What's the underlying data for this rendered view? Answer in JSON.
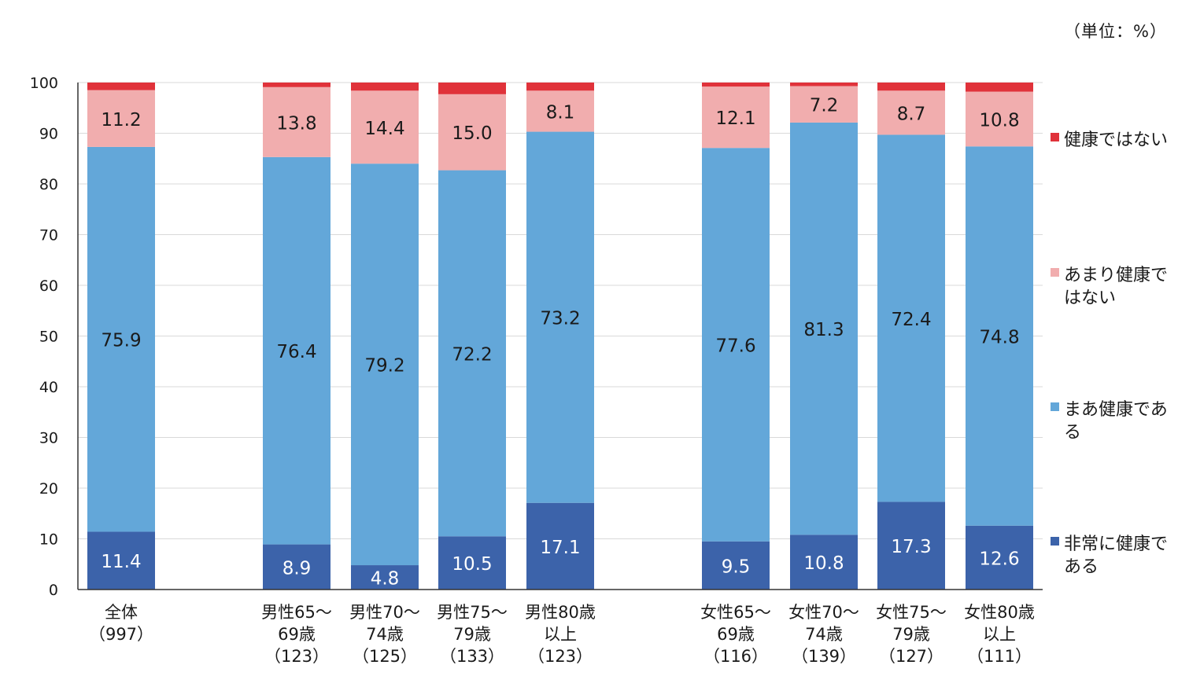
{
  "unit_note": "（単位：%）",
  "chart_data": {
    "type": "bar",
    "stacked": true,
    "orientation": "vertical",
    "ylim": [
      0,
      100
    ],
    "y_ticks": [
      0,
      10,
      20,
      30,
      40,
      50,
      60,
      70,
      80,
      90,
      100
    ],
    "grid": true,
    "legend_position": "right",
    "categories": [
      {
        "lines": [
          "全体",
          "（997）"
        ],
        "group": 0
      },
      {
        "lines": [
          "男性65～",
          "69歳",
          "（123）"
        ],
        "group": 1
      },
      {
        "lines": [
          "男性70～",
          "74歳",
          "（125）"
        ],
        "group": 1
      },
      {
        "lines": [
          "男性75～",
          "79歳",
          "（133）"
        ],
        "group": 1
      },
      {
        "lines": [
          "男性80歳",
          "以上",
          "（123）"
        ],
        "group": 1
      },
      {
        "lines": [
          "女性65～",
          "69歳",
          "（116）"
        ],
        "group": 2
      },
      {
        "lines": [
          "女性70～",
          "74歳",
          "（139）"
        ],
        "group": 2
      },
      {
        "lines": [
          "女性75～",
          "79歳",
          "（127）"
        ],
        "group": 2
      },
      {
        "lines": [
          "女性80歳",
          "以上",
          "（111）"
        ],
        "group": 2
      }
    ],
    "series": [
      {
        "name": "非常に健康である",
        "legend_lines": [
          "非常に健康で",
          "ある"
        ],
        "color": "#3c63aa",
        "values": [
          11.4,
          8.9,
          4.8,
          10.5,
          17.1,
          9.5,
          10.8,
          17.3,
          12.6
        ],
        "labels": [
          "11.4",
          "8.9",
          "4.8",
          "10.5",
          "17.1",
          "9.5",
          "10.8",
          "17.3",
          "12.6"
        ],
        "label_color": "#ffffff"
      },
      {
        "name": "まあ健康である",
        "legend_lines": [
          "まあ健康であ",
          "る"
        ],
        "color": "#63a7d9",
        "values": [
          75.9,
          76.4,
          79.2,
          72.2,
          73.2,
          77.6,
          81.3,
          72.4,
          74.8
        ],
        "labels": [
          "75.9",
          "76.4",
          "79.2",
          "72.2",
          "73.2",
          "77.6",
          "81.3",
          "72.4",
          "74.8"
        ],
        "label_color": "#1a1a1a"
      },
      {
        "name": "あまり健康ではない",
        "legend_lines": [
          "あまり健康で",
          "はない"
        ],
        "color": "#f1adae",
        "values": [
          11.2,
          13.8,
          14.4,
          15.0,
          8.1,
          12.1,
          7.2,
          8.7,
          10.8
        ],
        "labels": [
          "11.2",
          "13.8",
          "14.4",
          "15.0",
          "8.1",
          "12.1",
          "7.2",
          "8.7",
          "10.8"
        ],
        "label_color": "#1a1a1a"
      },
      {
        "name": "健康ではない",
        "legend_lines": [
          "健康ではない"
        ],
        "color": "#e0323a",
        "values": [
          1.5,
          0.9,
          1.6,
          2.3,
          1.6,
          0.8,
          0.7,
          1.6,
          1.8
        ],
        "labels": [],
        "label_color": "#ffffff"
      }
    ]
  }
}
